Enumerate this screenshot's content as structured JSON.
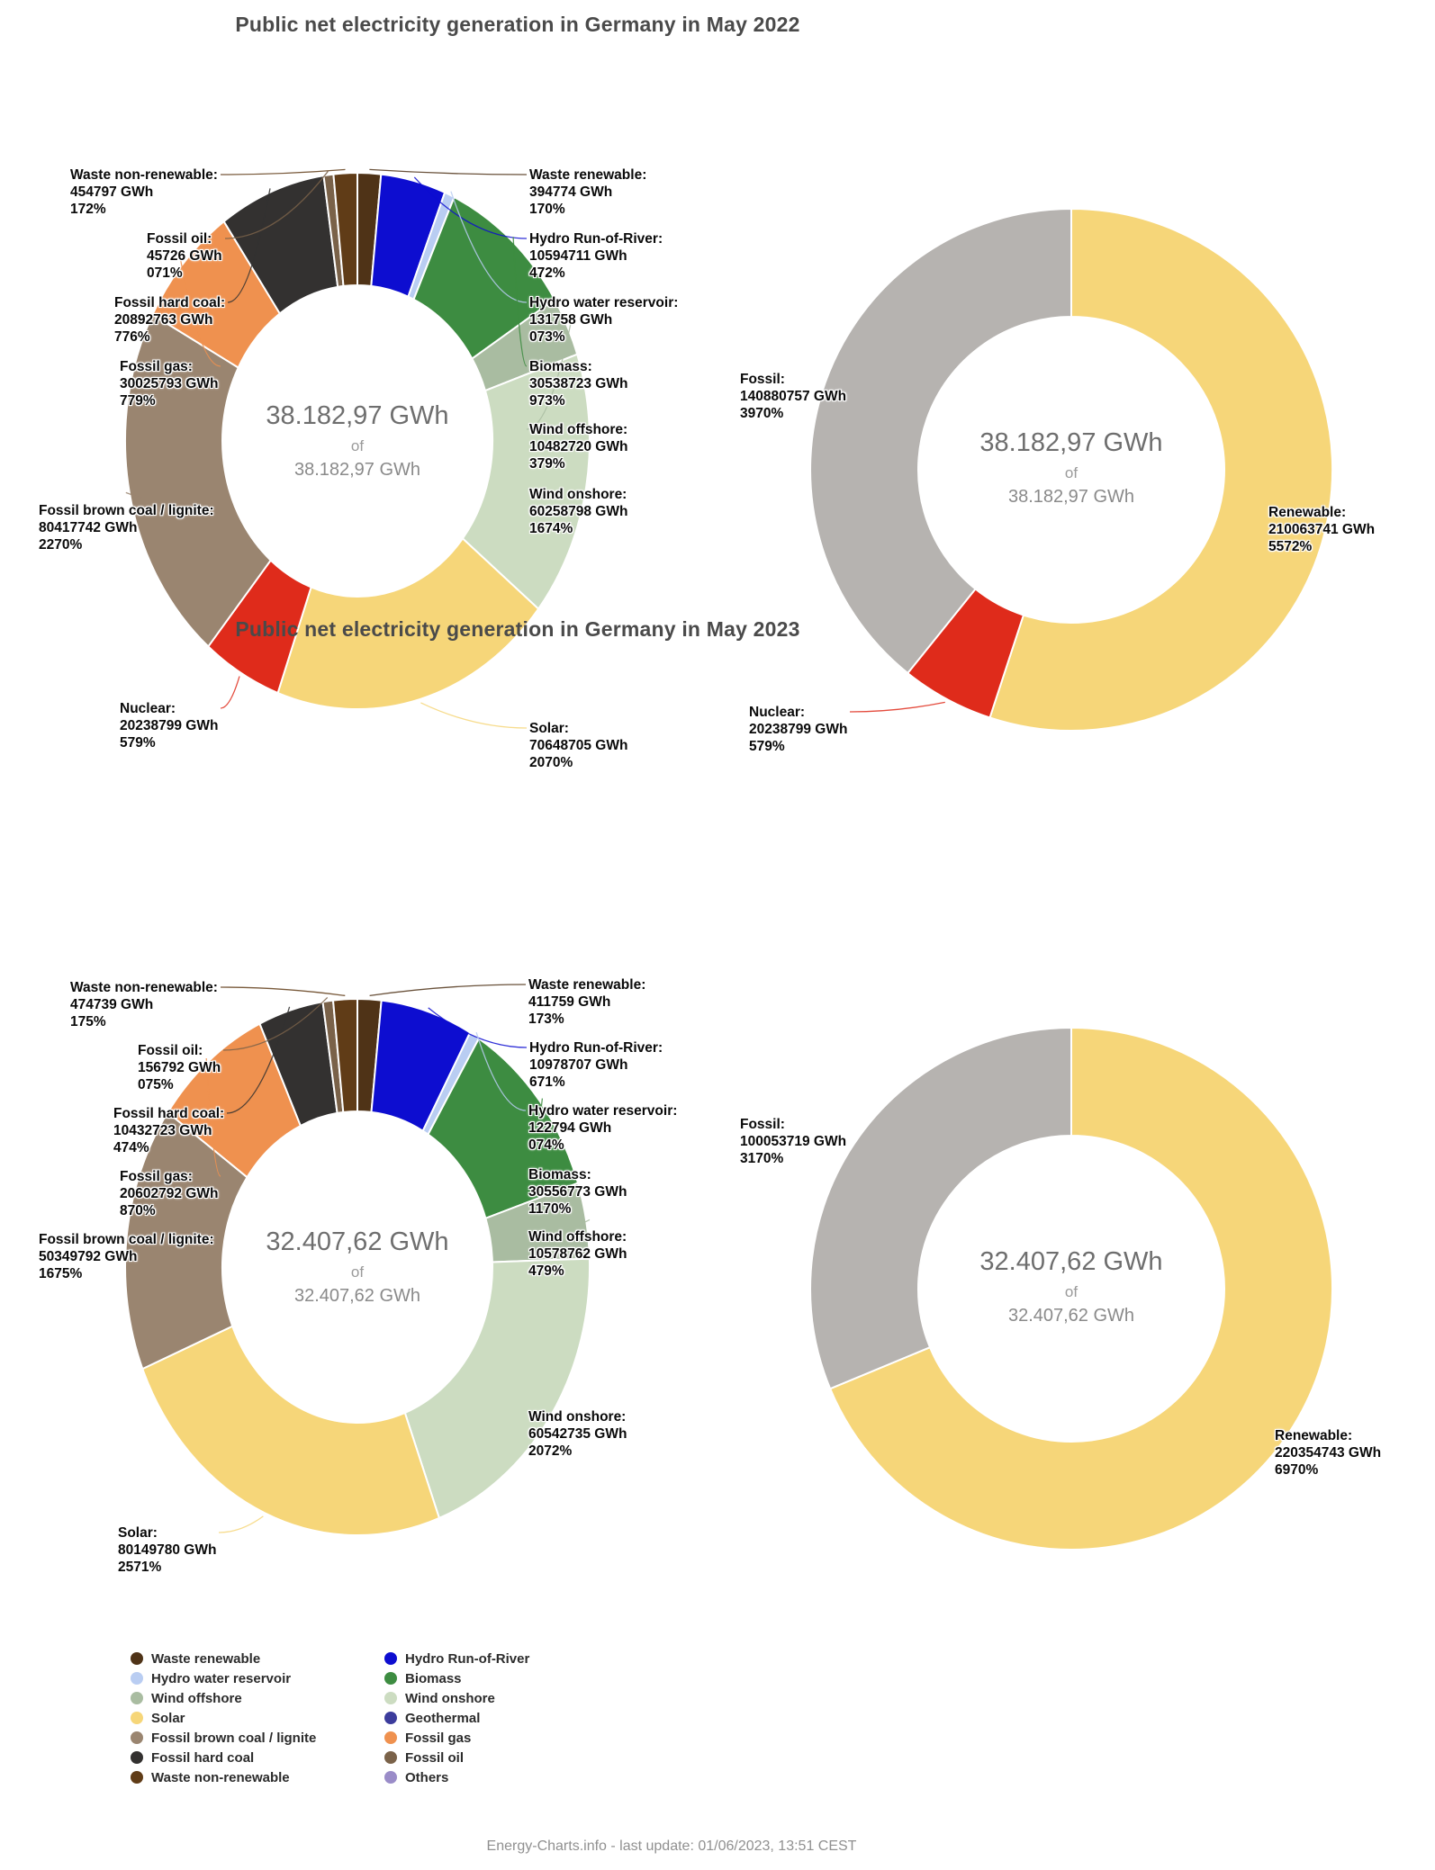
{
  "sections": [
    {
      "title": "Public net electricity generation in Germany in May 2022"
    },
    {
      "title": "Public net electricity generation in Germany in May 2023"
    }
  ],
  "footer": {
    "text": "Energy-Charts.info - last update: 01/06/2023, 13:51 CEST"
  },
  "legend": {
    "columns": [
      [
        {
          "label": "Waste renewable",
          "color": "#4f3317"
        },
        {
          "label": "Hydro water reservoir",
          "color": "#b9cdf2"
        },
        {
          "label": "Wind offshore",
          "color": "#a9bca1"
        },
        {
          "label": "Solar",
          "color": "#f6d679"
        },
        {
          "label": "Fossil brown coal / lignite",
          "color": "#9a8570"
        },
        {
          "label": "Fossil hard coal",
          "color": "#333130"
        },
        {
          "label": "Waste non-renewable",
          "color": "#603c17"
        }
      ],
      [
        {
          "label": "Hydro Run-of-River",
          "color": "#0d0dd0"
        },
        {
          "label": "Biomass",
          "color": "#3d8c41"
        },
        {
          "label": "Wind onshore",
          "color": "#ccdcc1"
        },
        {
          "label": "Geothermal",
          "color": "#3c3c9c"
        },
        {
          "label": "Fossil gas",
          "color": "#ef914f"
        },
        {
          "label": "Fossil oil",
          "color": "#7a6249"
        },
        {
          "label": "Others",
          "color": "#9a8cc8"
        }
      ]
    ]
  },
  "chart_data": [
    {
      "type": "pie",
      "variant": "detailed",
      "period": "May 2022",
      "title": "Public net electricity generation in Germany in May 2022",
      "center": {
        "line1": "38.182,97 GWh",
        "line2": "of",
        "line3": "38.182,97 GWh"
      },
      "slices": [
        {
          "id": "waste_renewable",
          "name": "Waste renewable",
          "gwh": "394774 GWh",
          "pct_label": "170%",
          "pct": 1.7,
          "color": "#4f3317"
        },
        {
          "id": "hydro_run_of_river",
          "name": "Hydro Run-of-River",
          "gwh": "10594711 GWh",
          "pct_label": "472%",
          "pct": 4.72,
          "color": "#0d0dd0"
        },
        {
          "id": "hydro_water_reservoir",
          "name": "Hydro water reservoir",
          "gwh": "131758 GWh",
          "pct_label": "073%",
          "pct": 0.73,
          "color": "#b9cdf2"
        },
        {
          "id": "biomass",
          "name": "Biomass",
          "gwh": "30538723 GWh",
          "pct_label": "973%",
          "pct": 9.73,
          "color": "#3d8c41"
        },
        {
          "id": "wind_offshore",
          "name": "Wind offshore",
          "gwh": "10482720 GWh",
          "pct_label": "379%",
          "pct": 3.79,
          "color": "#a9bca1"
        },
        {
          "id": "wind_onshore",
          "name": "Wind onshore",
          "gwh": "60258798 GWh",
          "pct_label": "1674%",
          "pct": 16.74,
          "color": "#ccdcc1"
        },
        {
          "id": "solar",
          "name": "Solar",
          "gwh": "70648705 GWh",
          "pct_label": "2070%",
          "pct": 20.7,
          "color": "#f6d679"
        },
        {
          "id": "nuclear",
          "name": "Nuclear",
          "gwh": "20238799 GWh",
          "pct_label": "579%",
          "pct": 5.79,
          "color": "#df2b1b"
        },
        {
          "id": "fossil_brown_coal",
          "name": "Fossil brown coal / lignite",
          "gwh": "80417742 GWh",
          "pct_label": "2270%",
          "pct": 22.7,
          "color": "#9a8570"
        },
        {
          "id": "fossil_gas",
          "name": "Fossil gas",
          "gwh": "30025793 GWh",
          "pct_label": "779%",
          "pct": 7.79,
          "color": "#ef914f"
        },
        {
          "id": "fossil_hard_coal",
          "name": "Fossil hard coal",
          "gwh": "20892763 GWh",
          "pct_label": "776%",
          "pct": 7.76,
          "color": "#333130"
        },
        {
          "id": "fossil_oil",
          "name": "Fossil oil",
          "gwh": "45726 GWh",
          "pct_label": "071%",
          "pct": 0.71,
          "color": "#7a6249"
        },
        {
          "id": "waste_non_renewable",
          "name": "Waste non-renewable",
          "gwh": "454797 GWh",
          "pct_label": "172%",
          "pct": 1.72,
          "color": "#603c17"
        }
      ]
    },
    {
      "type": "pie",
      "variant": "aggregated",
      "period": "May 2022",
      "center": {
        "line1": "38.182,97 GWh",
        "line2": "of",
        "line3": "38.182,97 GWh"
      },
      "slices": [
        {
          "id": "renewable",
          "name": "Renewable",
          "gwh": "210063741 GWh",
          "pct_label": "5572%",
          "pct": 55.72,
          "color": "#f6d679"
        },
        {
          "id": "nuclear",
          "name": "Nuclear",
          "gwh": "20238799 GWh",
          "pct_label": "579%",
          "pct": 5.79,
          "color": "#df2b1b"
        },
        {
          "id": "fossil",
          "name": "Fossil",
          "gwh": "140880757 GWh",
          "pct_label": "3970%",
          "pct": 39.7,
          "color": "#b6b3b0"
        }
      ]
    },
    {
      "type": "pie",
      "variant": "detailed",
      "period": "May 2023",
      "title": "Public net electricity generation in Germany in May 2023",
      "center": {
        "line1": "32.407,62 GWh",
        "line2": "of",
        "line3": "32.407,62 GWh"
      },
      "slices": [
        {
          "id": "waste_renewable",
          "name": "Waste renewable",
          "gwh": "411759 GWh",
          "pct_label": "173%",
          "pct": 1.73,
          "color": "#4f3317"
        },
        {
          "id": "hydro_run_of_river",
          "name": "Hydro Run-of-River",
          "gwh": "10978707 GWh",
          "pct_label": "671%",
          "pct": 6.71,
          "color": "#0d0dd0"
        },
        {
          "id": "hydro_water_reservoir",
          "name": "Hydro water reservoir",
          "gwh": "122794 GWh",
          "pct_label": "074%",
          "pct": 0.74,
          "color": "#b9cdf2"
        },
        {
          "id": "biomass",
          "name": "Biomass",
          "gwh": "30556773 GWh",
          "pct_label": "1170%",
          "pct": 11.7,
          "color": "#3d8c41"
        },
        {
          "id": "wind_offshore",
          "name": "Wind offshore",
          "gwh": "10578762 GWh",
          "pct_label": "479%",
          "pct": 4.79,
          "color": "#a9bca1"
        },
        {
          "id": "wind_onshore",
          "name": "Wind onshore",
          "gwh": "60542735 GWh",
          "pct_label": "2072%",
          "pct": 20.72,
          "color": "#ccdcc1"
        },
        {
          "id": "solar",
          "name": "Solar",
          "gwh": "80149780 GWh",
          "pct_label": "2571%",
          "pct": 25.71,
          "color": "#f6d679"
        },
        {
          "id": "fossil_brown_coal",
          "name": "Fossil brown coal / lignite",
          "gwh": "50349792 GWh",
          "pct_label": "1675%",
          "pct": 16.75,
          "color": "#9a8570"
        },
        {
          "id": "fossil_gas",
          "name": "Fossil gas",
          "gwh": "20602792 GWh",
          "pct_label": "870%",
          "pct": 8.7,
          "color": "#ef914f"
        },
        {
          "id": "fossil_hard_coal",
          "name": "Fossil hard coal",
          "gwh": "10432723 GWh",
          "pct_label": "474%",
          "pct": 4.74,
          "color": "#333130"
        },
        {
          "id": "fossil_oil",
          "name": "Fossil oil",
          "gwh": "156792 GWh",
          "pct_label": "075%",
          "pct": 0.75,
          "color": "#7a6249"
        },
        {
          "id": "waste_non_renewable",
          "name": "Waste non-renewable",
          "gwh": "474739 GWh",
          "pct_label": "175%",
          "pct": 1.75,
          "color": "#603c17"
        }
      ]
    },
    {
      "type": "pie",
      "variant": "aggregated",
      "period": "May 2023",
      "center": {
        "line1": "32.407,62 GWh",
        "line2": "of",
        "line3": "32.407,62 GWh"
      },
      "slices": [
        {
          "id": "renewable",
          "name": "Renewable",
          "gwh": "220354743 GWh",
          "pct_label": "6970%",
          "pct": 69.7,
          "color": "#f6d679"
        },
        {
          "id": "fossil",
          "name": "Fossil",
          "gwh": "100053719 GWh",
          "pct_label": "3170%",
          "pct": 31.7,
          "color": "#b6b3b0"
        }
      ]
    }
  ]
}
